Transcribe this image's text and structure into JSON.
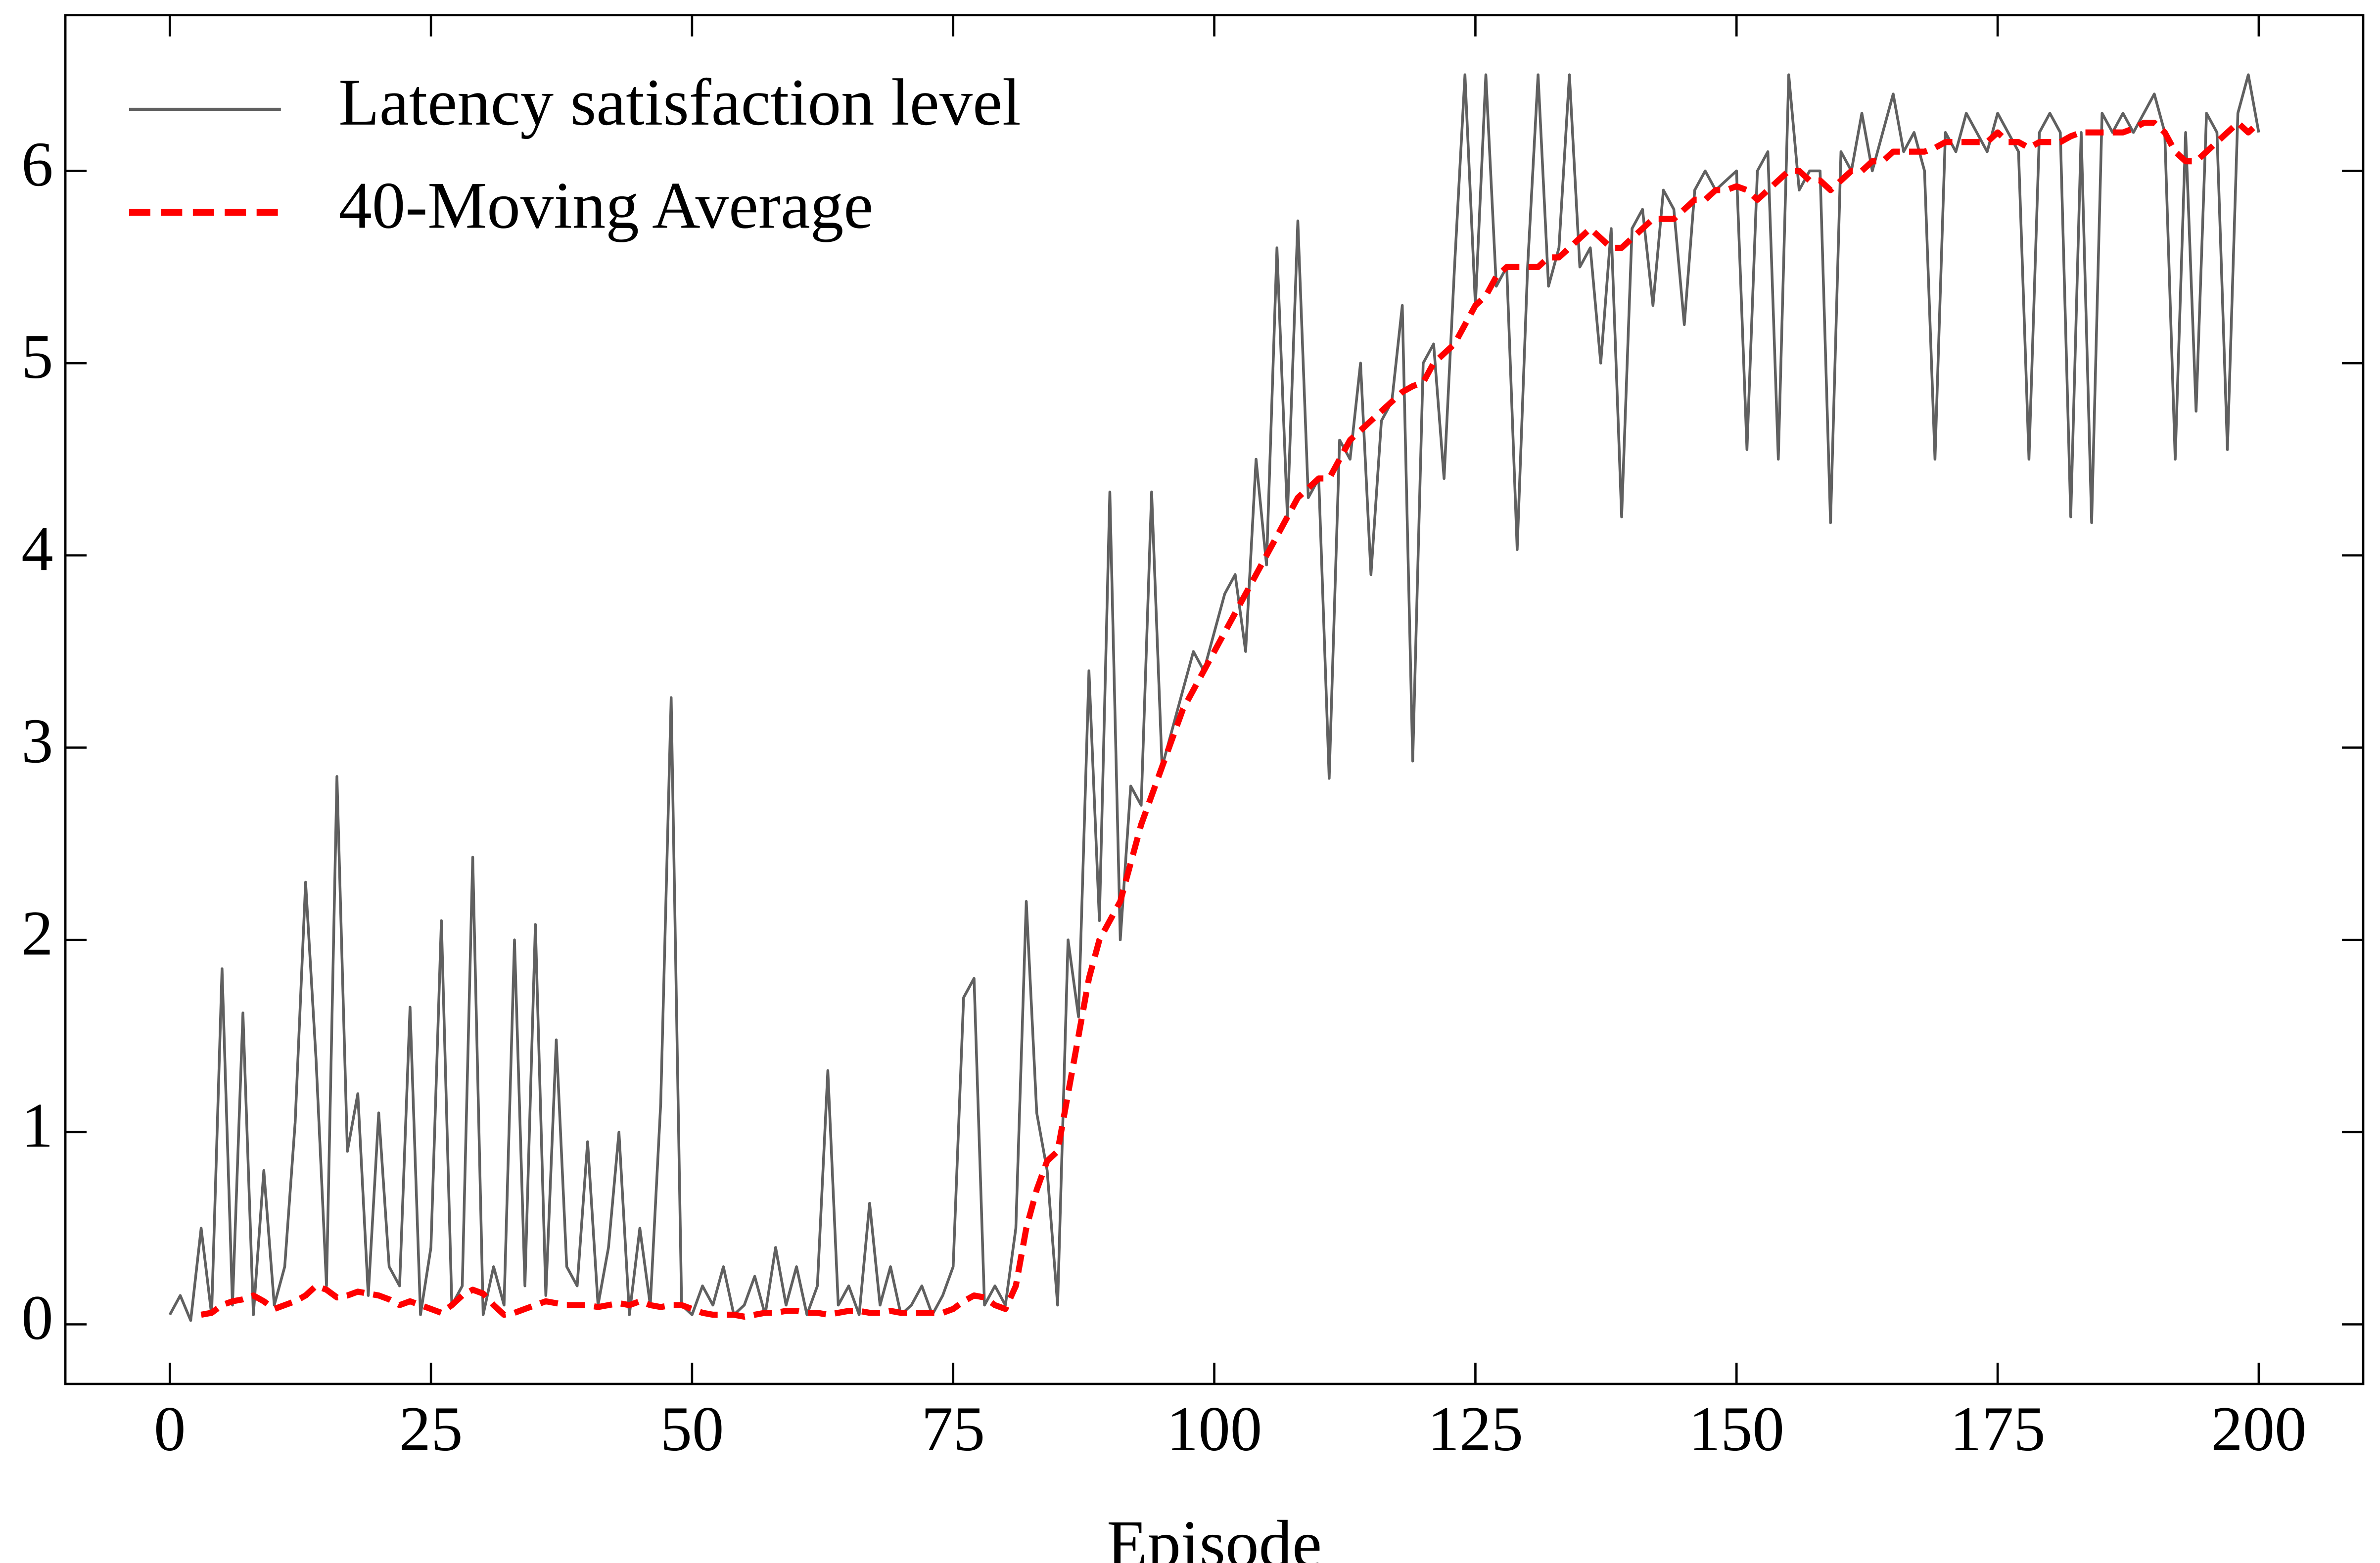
{
  "chart_data": {
    "type": "line",
    "x_label": "Episode",
    "x": [
      0,
      1,
      2,
      3,
      4,
      5,
      6,
      7,
      8,
      9,
      10,
      11,
      12,
      13,
      14,
      15,
      16,
      17,
      18,
      19,
      20,
      21,
      22,
      23,
      24,
      25,
      26,
      27,
      28,
      29,
      30,
      31,
      32,
      33,
      34,
      35,
      36,
      37,
      38,
      39,
      40,
      41,
      42,
      43,
      44,
      45,
      46,
      47,
      48,
      49,
      50,
      51,
      52,
      53,
      54,
      55,
      56,
      57,
      58,
      59,
      60,
      61,
      62,
      63,
      64,
      65,
      66,
      67,
      68,
      69,
      70,
      71,
      72,
      73,
      74,
      75,
      76,
      77,
      78,
      79,
      80,
      81,
      82,
      83,
      84,
      85,
      86,
      87,
      88,
      89,
      90,
      91,
      92,
      93,
      94,
      95,
      96,
      97,
      98,
      99,
      100,
      101,
      102,
      103,
      104,
      105,
      106,
      107,
      108,
      109,
      110,
      111,
      112,
      113,
      114,
      115,
      116,
      117,
      118,
      119,
      120,
      121,
      122,
      123,
      124,
      125,
      126,
      127,
      128,
      129,
      130,
      131,
      132,
      133,
      134,
      135,
      136,
      137,
      138,
      139,
      140,
      141,
      142,
      143,
      144,
      145,
      146,
      147,
      148,
      149,
      150,
      151,
      152,
      153,
      154,
      155,
      156,
      157,
      158,
      159,
      160,
      161,
      162,
      163,
      164,
      165,
      166,
      167,
      168,
      169,
      170,
      171,
      172,
      173,
      174,
      175,
      176,
      177,
      178,
      179,
      180,
      181,
      182,
      183,
      184,
      185,
      186,
      187,
      188,
      189,
      190,
      191,
      192,
      193,
      194,
      195,
      196,
      197,
      198,
      199,
      200
    ],
    "series": [
      {
        "name": "Latency satisfaction level",
        "color": "#606060",
        "linestyle": "solid",
        "values": [
          0.05,
          0.15,
          0.02,
          0.5,
          0.05,
          1.85,
          0.1,
          1.62,
          0.05,
          0.8,
          0.1,
          0.3,
          1.05,
          2.3,
          1.38,
          0.2,
          2.85,
          0.9,
          1.2,
          0.15,
          1.1,
          0.3,
          0.2,
          1.65,
          0.05,
          0.4,
          2.1,
          0.1,
          0.2,
          2.43,
          0.05,
          0.3,
          0.1,
          2.0,
          0.2,
          2.08,
          0.15,
          1.48,
          0.3,
          0.2,
          0.95,
          0.1,
          0.4,
          1.0,
          0.05,
          0.5,
          0.1,
          1.15,
          3.26,
          0.1,
          0.05,
          0.2,
          0.1,
          0.3,
          0.05,
          0.1,
          0.25,
          0.05,
          0.4,
          0.1,
          0.3,
          0.05,
          0.2,
          1.32,
          0.1,
          0.2,
          0.05,
          0.63,
          0.1,
          0.3,
          0.05,
          0.1,
          0.2,
          0.05,
          0.15,
          0.3,
          1.7,
          1.8,
          0.1,
          0.2,
          0.1,
          0.5,
          2.2,
          1.1,
          0.8,
          0.1,
          2.0,
          1.6,
          3.4,
          2.1,
          4.33,
          2.0,
          2.8,
          2.7,
          4.33,
          2.9,
          3.1,
          3.3,
          3.5,
          3.4,
          3.6,
          3.8,
          3.9,
          3.5,
          4.5,
          3.95,
          5.6,
          4.2,
          5.74,
          4.3,
          4.4,
          2.84,
          4.6,
          4.5,
          5.0,
          3.9,
          4.7,
          4.8,
          5.3,
          2.93,
          5.0,
          5.1,
          4.4,
          5.5,
          6.5,
          5.3,
          6.5,
          5.4,
          5.5,
          4.03,
          5.5,
          6.5,
          5.4,
          5.6,
          6.5,
          5.5,
          5.6,
          5.0,
          5.7,
          4.2,
          5.7,
          5.8,
          5.3,
          5.9,
          5.8,
          5.2,
          5.9,
          6.0,
          5.9,
          5.95,
          6.0,
          4.55,
          6.0,
          6.1,
          4.5,
          6.5,
          5.9,
          6.0,
          6.0,
          4.17,
          6.1,
          6.0,
          6.3,
          6.0,
          6.2,
          6.4,
          6.1,
          6.2,
          6.0,
          4.5,
          6.2,
          6.1,
          6.3,
          6.2,
          6.1,
          6.3,
          6.2,
          6.1,
          4.5,
          6.2,
          6.3,
          6.2,
          4.2,
          6.2,
          4.17,
          6.3,
          6.2,
          6.3,
          6.2,
          6.3,
          6.4,
          6.2,
          4.5,
          6.2,
          4.75,
          6.3,
          6.2,
          4.55,
          6.3,
          6.5,
          6.2
        ]
      },
      {
        "name": "40-Moving Average",
        "color": "#ff0000",
        "linestyle": "dashed",
        "values": [
          null,
          null,
          null,
          0.05,
          0.06,
          0.1,
          0.12,
          0.13,
          0.15,
          0.12,
          0.08,
          0.1,
          0.12,
          0.15,
          0.2,
          0.18,
          0.14,
          0.15,
          0.17,
          0.16,
          0.15,
          0.13,
          0.1,
          0.12,
          0.1,
          0.08,
          0.06,
          0.1,
          0.15,
          0.18,
          0.16,
          0.1,
          0.05,
          0.06,
          0.08,
          0.1,
          0.12,
          0.11,
          0.1,
          0.1,
          0.1,
          0.09,
          0.1,
          0.11,
          0.1,
          0.12,
          0.1,
          0.09,
          0.1,
          0.1,
          0.08,
          0.06,
          0.05,
          0.05,
          0.05,
          0.04,
          0.05,
          0.06,
          0.06,
          0.07,
          0.07,
          0.06,
          0.06,
          0.05,
          0.06,
          0.07,
          0.07,
          0.06,
          0.06,
          0.07,
          0.06,
          0.06,
          0.06,
          0.06,
          0.06,
          0.08,
          0.12,
          0.15,
          0.14,
          0.1,
          0.08,
          0.2,
          0.5,
          0.7,
          0.85,
          0.9,
          1.2,
          1.5,
          1.8,
          2.0,
          2.1,
          2.2,
          2.4,
          2.6,
          2.75,
          2.9,
          3.05,
          3.2,
          3.3,
          3.4,
          3.5,
          3.6,
          3.7,
          3.8,
          3.9,
          4.0,
          4.1,
          4.2,
          4.3,
          4.35,
          4.4,
          4.4,
          4.5,
          4.6,
          4.65,
          4.7,
          4.75,
          4.8,
          4.85,
          4.88,
          4.9,
          5.0,
          5.05,
          5.1,
          5.2,
          5.3,
          5.35,
          5.45,
          5.5,
          5.5,
          5.5,
          5.5,
          5.55,
          5.55,
          5.6,
          5.65,
          5.7,
          5.65,
          5.6,
          5.6,
          5.65,
          5.7,
          5.75,
          5.75,
          5.75,
          5.8,
          5.85,
          5.85,
          5.9,
          5.9,
          5.92,
          5.9,
          5.85,
          5.9,
          5.95,
          6.0,
          6.0,
          5.95,
          5.95,
          5.9,
          5.95,
          6.0,
          6.0,
          6.05,
          6.05,
          6.1,
          6.1,
          6.1,
          6.1,
          6.12,
          6.15,
          6.15,
          6.15,
          6.15,
          6.15,
          6.2,
          6.15,
          6.15,
          6.12,
          6.15,
          6.15,
          6.15,
          6.18,
          6.2,
          6.2,
          6.2,
          6.2,
          6.2,
          6.22,
          6.25,
          6.25,
          6.2,
          6.1,
          6.05,
          6.05,
          6.1,
          6.15,
          6.2,
          6.25,
          6.2,
          6.25
        ]
      }
    ],
    "xlim": [
      -10,
      210
    ],
    "ylim": [
      -0.31,
      6.81
    ],
    "xticks": [
      0,
      25,
      50,
      75,
      100,
      125,
      150,
      175,
      200
    ],
    "yticks": [
      0,
      1,
      2,
      3,
      4,
      5,
      6
    ],
    "legend": "upper left",
    "grid": false
  }
}
